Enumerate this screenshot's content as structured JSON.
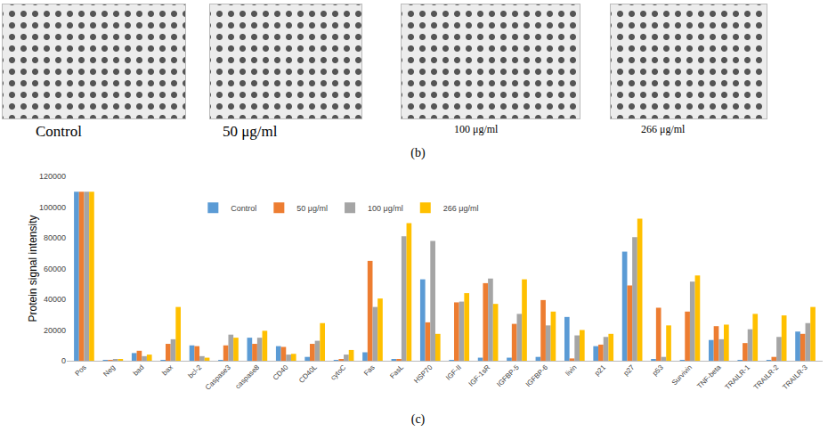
{
  "chart_data": {
    "type": "bar",
    "y_label": "Protein signal intensity",
    "annotations": [
      {
        "text": "(c)"
      }
    ],
    "categories": [
      "Pos",
      "Neg",
      "bad",
      "bax",
      "bcl-2",
      "Caspase3",
      "caspase8",
      "CD40",
      "CD40L",
      "cytoC",
      "Fas",
      "FasL",
      "HSP70",
      "IGF-II",
      "IGF-1sR",
      "IGFBP-5",
      "IGFBP-6",
      "livin",
      "p21",
      "p27",
      "p53",
      "Survivin",
      "TNF-beta",
      "TRAILR-1",
      "TRAILR-2",
      "TRAILR-3"
    ],
    "series": [
      {
        "name": "Control",
        "color": "#5b9bd5",
        "values": [
          110000,
          500,
          5000,
          500,
          10000,
          500,
          15000,
          9500,
          2500,
          500,
          5500,
          1000,
          53000,
          500,
          2000,
          2000,
          2500,
          28500,
          9500,
          71000,
          1000,
          500,
          13500,
          500,
          500,
          19000
        ]
      },
      {
        "name": "50 μg/ml",
        "color": "#ed7d31",
        "values": [
          110000,
          500,
          6500,
          11000,
          9500,
          10000,
          11000,
          9000,
          11000,
          1000,
          65000,
          1000,
          25000,
          38000,
          50500,
          24000,
          39500,
          1500,
          10500,
          49000,
          34500,
          32000,
          22500,
          11500,
          2500,
          17500
        ]
      },
      {
        "name": "100 μg/ml",
        "color": "#a5a5a5",
        "values": [
          110000,
          600,
          3000,
          14000,
          3000,
          17000,
          15000,
          4000,
          13000,
          4000,
          35000,
          81000,
          78000,
          38500,
          53500,
          30500,
          23000,
          16500,
          15500,
          80500,
          2500,
          51500,
          14000,
          20500,
          15500,
          24500
        ]
      },
      {
        "name": "266 μg/ml",
        "color": "#ffc000",
        "values": [
          110000,
          800,
          4000,
          35000,
          2000,
          15000,
          19500,
          4500,
          24500,
          7000,
          40500,
          89500,
          17500,
          44000,
          37000,
          53000,
          32000,
          20000,
          17500,
          92500,
          23000,
          55500,
          23500,
          30500,
          29500,
          35000
        ]
      }
    ],
    "ylim": [
      0,
      120000
    ],
    "yticks": [
      0,
      20000,
      40000,
      60000,
      80000,
      100000,
      120000
    ],
    "grid": false,
    "legend": "upper left"
  },
  "blots": {
    "labels": [
      "Control",
      "50 μg/ml",
      "100 μg/ml",
      "266 μg/ml"
    ],
    "panel_label": "(b)"
  }
}
